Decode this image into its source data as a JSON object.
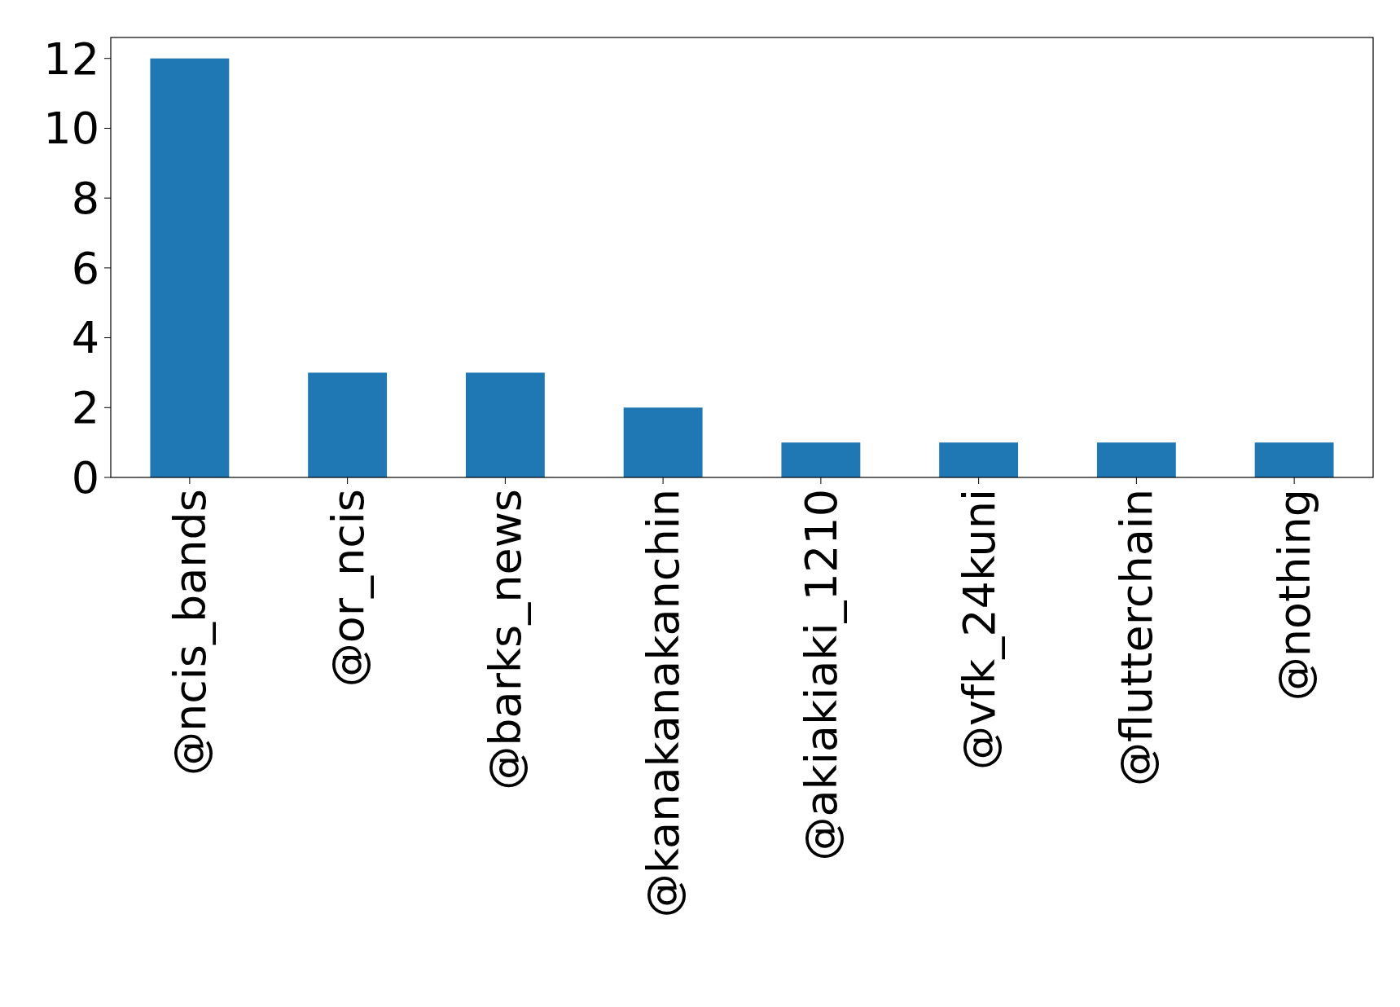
{
  "chart_data": {
    "type": "bar",
    "categories": [
      "@ncis_bands",
      "@or_ncis",
      "@barks_news",
      "@kanakanakanchin",
      "@akiakiaki_1210",
      "@vfk_24kuni",
      "@flutterchain",
      "@nothing"
    ],
    "values": [
      12,
      3,
      3,
      2,
      1,
      1,
      1,
      1
    ],
    "color": "#1f77b4",
    "ylim": [
      0,
      12.6
    ],
    "yticks": [
      0,
      2,
      4,
      6,
      8,
      10,
      12
    ],
    "grid": false
  }
}
